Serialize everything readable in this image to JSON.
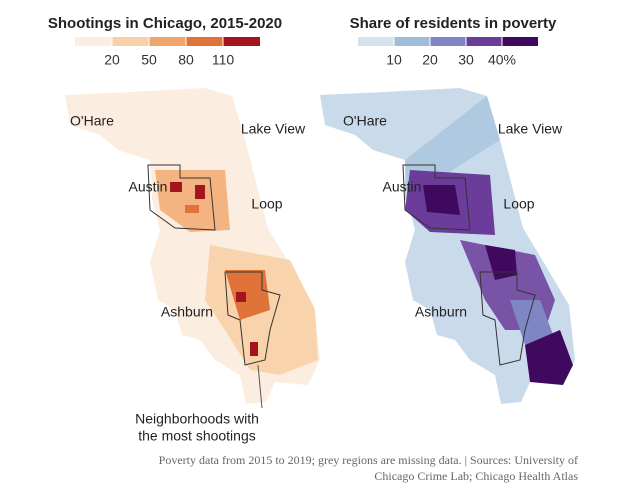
{
  "maps": [
    {
      "title": "Shootings in Chicago, 2015-2020",
      "legend": {
        "colors": [
          "#fbeee0",
          "#f8cfa6",
          "#f2a56a",
          "#e0733a",
          "#a3141c"
        ],
        "ticks": [
          20,
          50,
          80,
          110
        ]
      },
      "places": [
        "O'Hare",
        "Lake View",
        "Austin",
        "Loop",
        "Ashburn"
      ]
    },
    {
      "title": "Share of residents in poverty",
      "legend": {
        "colors": [
          "#d6e3ee",
          "#9fbddb",
          "#7f86c4",
          "#6b3c9a",
          "#3f0a5e"
        ],
        "ticks": [
          10,
          20,
          30,
          {
            "value": 40,
            "label": "40%"
          }
        ]
      },
      "places": [
        "O'Hare",
        "Lake View",
        "Austin",
        "Loop",
        "Ashburn"
      ]
    }
  ],
  "annotation": [
    "Neighborhoods with",
    "the most shootings"
  ],
  "footer": [
    "Poverty data from 2015 to 2019; grey regions are missing data. | Sources: University of",
    "Chicago Crime Lab; Chicago Health Atlas"
  ]
}
